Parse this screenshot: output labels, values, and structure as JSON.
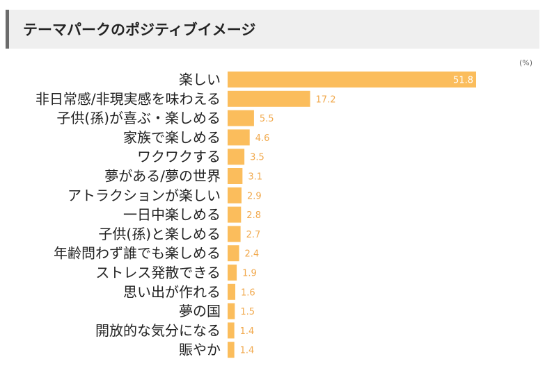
{
  "title": "テーマパークのポジティブイメージ",
  "unit_label": "(%)",
  "colors": {
    "bar": "#fbbd5c",
    "value_inside": "#ffffff",
    "value_outside": "#f1a94d",
    "label": "#222222"
  },
  "chart_data": {
    "type": "bar",
    "orientation": "horizontal",
    "categories": [
      "楽しい",
      "非日常感/非現実感を味わえる",
      "子供(孫)が喜ぶ・楽しめる",
      "家族で楽しめる",
      "ワクワクする",
      "夢がある/夢の世界",
      "アトラクションが楽しい",
      "一日中楽しめる",
      "子供(孫)と楽しめる",
      "年齢問わず誰でも楽しめる",
      "ストレス発散できる",
      "思い出が作れる",
      "夢の国",
      "開放的な気分になる",
      "賑やか"
    ],
    "values": [
      51.8,
      17.2,
      5.5,
      4.6,
      3.5,
      3.1,
      2.9,
      2.8,
      2.7,
      2.4,
      1.9,
      1.6,
      1.5,
      1.4,
      1.4
    ],
    "value_labels": [
      "51.8",
      "17.2",
      "5.5",
      "4.6",
      "3.5",
      "3.1",
      "2.9",
      "2.8",
      "2.7",
      "2.4",
      "1.9",
      "1.6",
      "1.5",
      "1.4",
      "1.4"
    ],
    "xlim": [
      0,
      51.8
    ],
    "grid": false,
    "legend": "none"
  }
}
